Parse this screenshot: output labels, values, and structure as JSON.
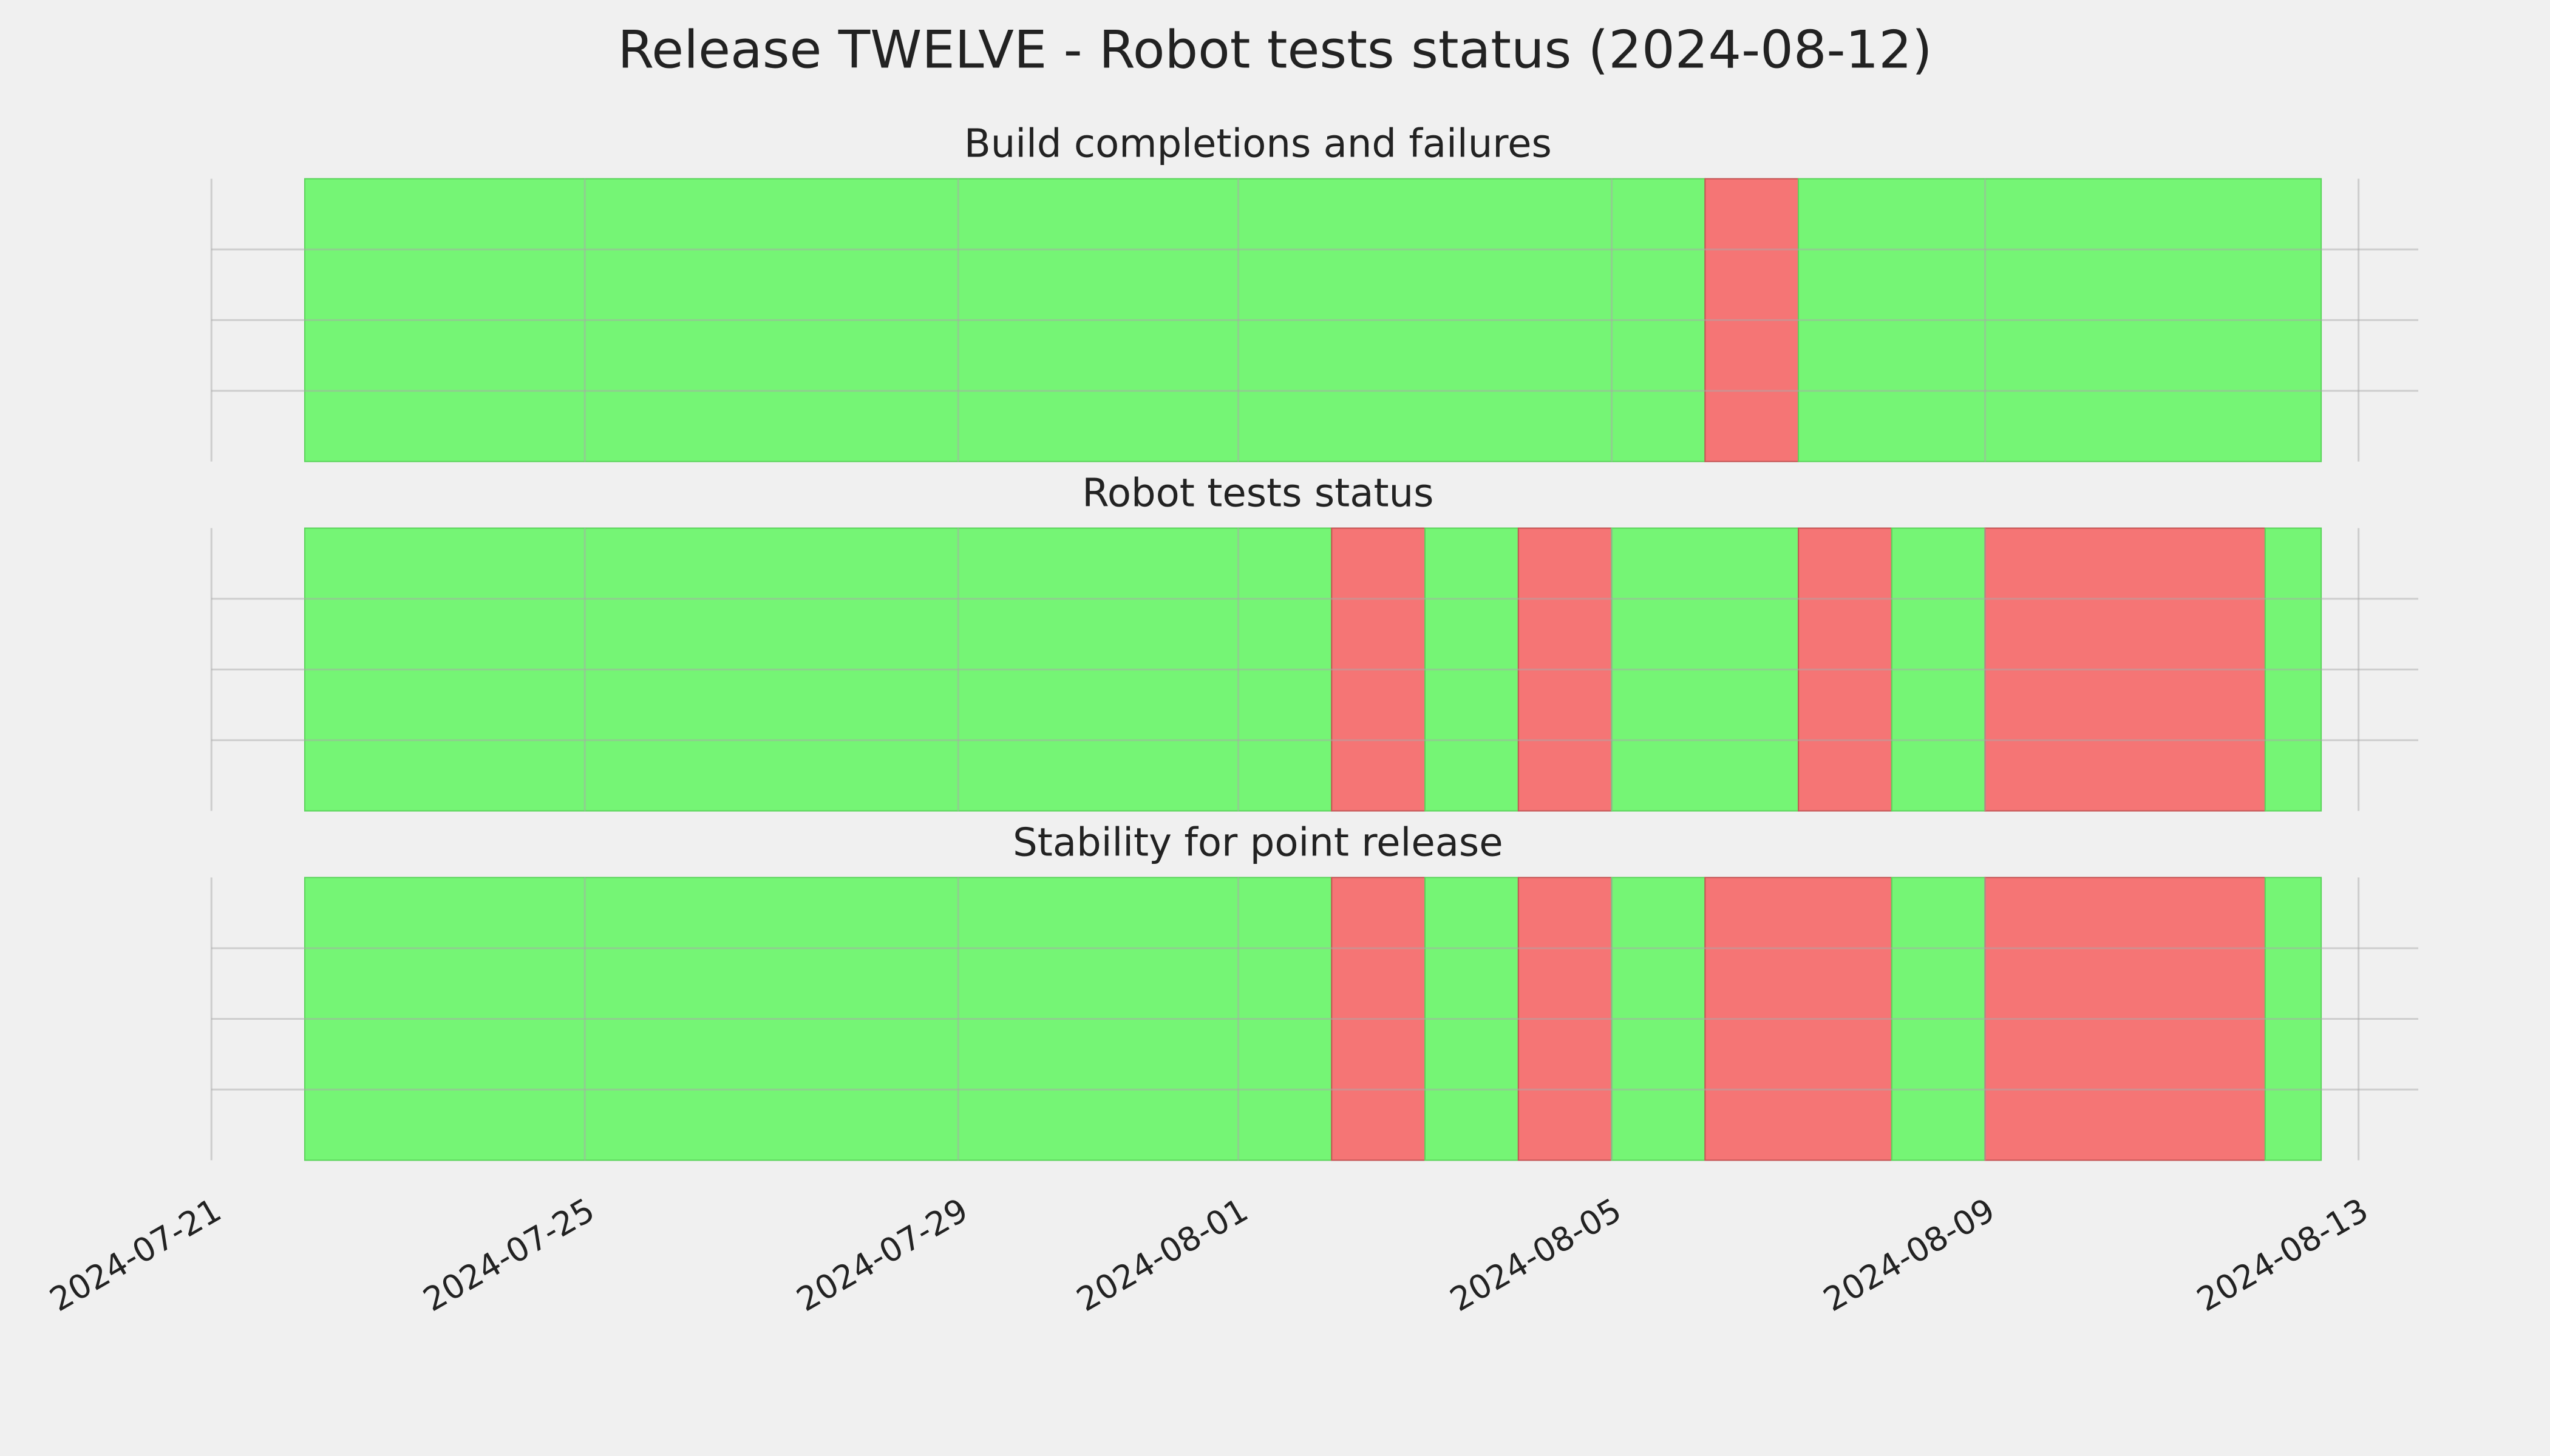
{
  "chart_data": {
    "type": "span",
    "title": "Release TWELVE - Robot tests status (2024-08-12)",
    "xlim": [
      0,
      23.64
    ],
    "xticks": [
      {
        "value": 0,
        "label": "2024-07-21"
      },
      {
        "value": 4,
        "label": "2024-07-25"
      },
      {
        "value": 8,
        "label": "2024-07-29"
      },
      {
        "value": 11,
        "label": "2024-08-01"
      },
      {
        "value": 15,
        "label": "2024-08-05"
      },
      {
        "value": 19,
        "label": "2024-08-09"
      },
      {
        "value": 23,
        "label": "2024-08-13"
      }
    ],
    "ylim": [
      0,
      1
    ],
    "yticks": [
      0.25,
      0.5,
      0.75
    ],
    "grid": true,
    "panels": [
      {
        "title": "Build completions and failures",
        "starts": [
          1,
          16,
          17
        ],
        "ends": [
          16,
          17,
          22.6
        ],
        "colors": [
          "#75f575",
          "#f57575",
          "#75f575"
        ]
      },
      {
        "title": "Robot tests status",
        "starts": [
          1,
          12,
          13,
          14,
          15,
          17,
          18,
          19,
          22
        ],
        "ends": [
          12,
          13,
          14,
          15,
          17,
          18,
          19,
          22,
          22.6
        ],
        "colors": [
          "#75f575",
          "#f57575",
          "#75f575",
          "#f57575",
          "#75f575",
          "#f57575",
          "#75f575",
          "#f57575",
          "#75f575"
        ]
      },
      {
        "title": "Stability for point release",
        "starts": [
          1,
          12,
          13,
          14,
          15,
          16,
          18,
          19,
          22
        ],
        "ends": [
          12,
          13,
          14,
          15,
          16,
          18,
          19,
          22,
          22.6
        ],
        "colors": [
          "#75f575",
          "#f57575",
          "#75f575",
          "#f57575",
          "#75f575",
          "#f57575",
          "#75f575",
          "#f57575",
          "#75f575"
        ]
      }
    ]
  }
}
